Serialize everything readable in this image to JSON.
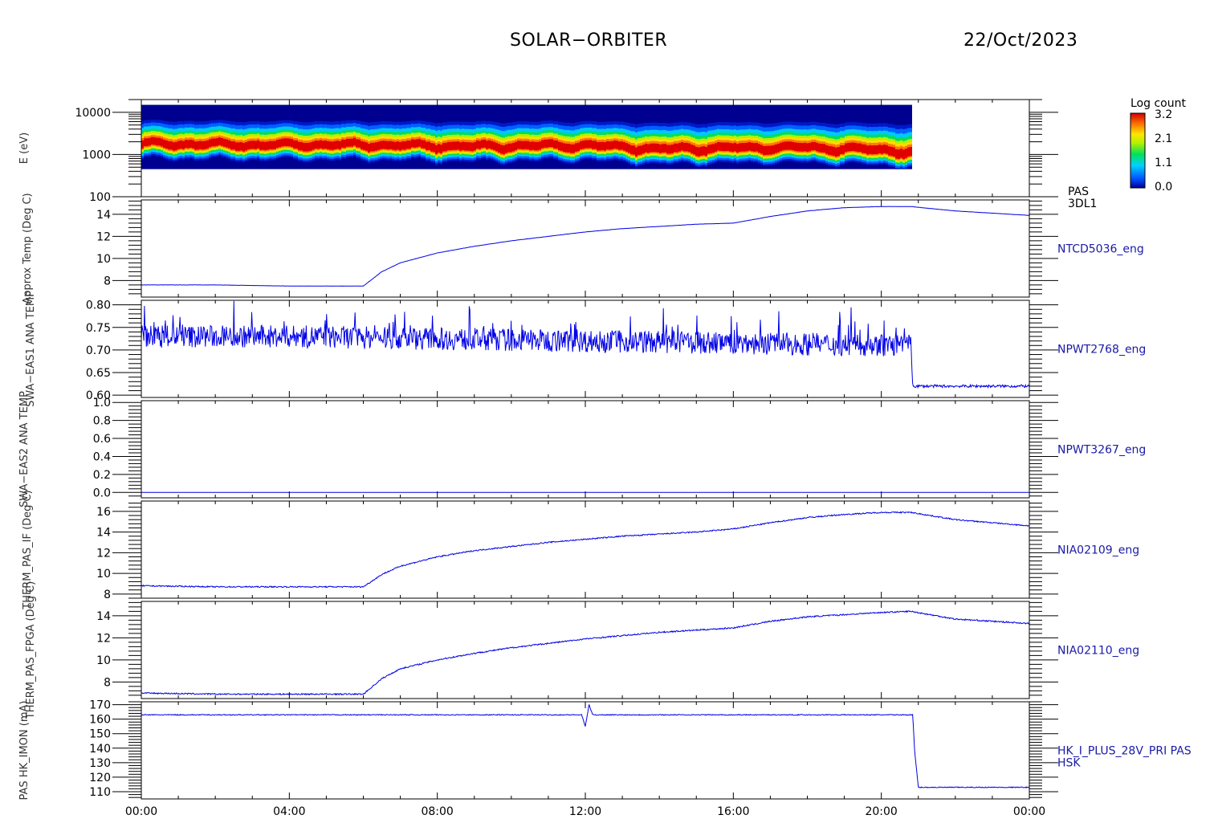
{
  "header": {
    "title": "SOLAR−ORBITER",
    "date": "22/Oct/2023"
  },
  "colorbar": {
    "title": "Log count",
    "ticks": [
      "3.2",
      "2.1",
      "1.1",
      "0.0"
    ]
  },
  "colors": {
    "trace": "#0000e6",
    "axis": "#000000",
    "label": "#1a1aa8"
  },
  "time_axis": {
    "labels": [
      "00:00",
      "04:00",
      "08:00",
      "12:00",
      "16:00",
      "20:00",
      "00:00"
    ],
    "start_hour": 0,
    "end_hour": 24
  },
  "panels": [
    {
      "type": "spectrogram",
      "ylabel": "E (eV)",
      "right_label": [
        "PAS",
        "3DL1"
      ],
      "log": true,
      "ylim": [
        100,
        20000
      ],
      "yticks": [
        100,
        1000,
        10000
      ],
      "yticklabels": [
        "100",
        "1000",
        "10000"
      ]
    },
    {
      "type": "line",
      "ylabel": "Approx Temp (Deg C)",
      "right_label": [
        "NTCD5036_eng"
      ],
      "ylim": [
        6.5,
        15.3
      ],
      "yticks": [
        8,
        10,
        12,
        14
      ],
      "yticklabels": [
        "8",
        "10",
        "12",
        "14"
      ]
    },
    {
      "type": "line",
      "ylabel": "SWA−EAS1 ANA TEMP",
      "right_label": [
        "NPWT2768_eng"
      ],
      "ylim": [
        0.595,
        0.81
      ],
      "yticks": [
        0.6,
        0.65,
        0.7,
        0.75,
        0.8
      ],
      "yticklabels": [
        "0.60",
        "0.65",
        "0.70",
        "0.75",
        "0.80"
      ]
    },
    {
      "type": "line",
      "ylabel": "SWA−EAS2 ANA TEMP",
      "right_label": [
        "NPWT3267_eng"
      ],
      "ylim": [
        -0.06,
        1.02
      ],
      "yticks": [
        0,
        0.2,
        0.4,
        0.6,
        0.8,
        1.0
      ],
      "yticklabels": [
        "0.0",
        "0.2",
        "0.4",
        "0.6",
        "0.8",
        "1.0"
      ]
    },
    {
      "type": "line",
      "ylabel": "THERM_PAS_IF (Deg C)",
      "right_label": [
        "NIA02109_eng"
      ],
      "ylim": [
        7.6,
        17.0
      ],
      "yticks": [
        8,
        10,
        12,
        14,
        16
      ],
      "yticklabels": [
        "8",
        "10",
        "12",
        "14",
        "16"
      ]
    },
    {
      "type": "line",
      "ylabel": "THERM_PAS_FPGA (Deg C)",
      "right_label": [
        "NIA02110_eng"
      ],
      "ylim": [
        6.5,
        15.3
      ],
      "yticks": [
        8,
        10,
        12,
        14
      ],
      "yticklabels": [
        "8",
        "10",
        "12",
        "14"
      ]
    },
    {
      "type": "line",
      "ylabel": "PAS HK_IMON (mA)",
      "right_label": [
        "HK_I_PLUS_28V_PRI PAS",
        "HSK"
      ],
      "ylim": [
        105,
        172
      ],
      "yticks": [
        110,
        120,
        130,
        140,
        150,
        160,
        170
      ],
      "yticklabels": [
        "110",
        "120",
        "130",
        "140",
        "150",
        "160",
        "170"
      ]
    }
  ],
  "chart_data": {
    "type": "line",
    "title": "SOLAR−ORBITER",
    "date": "22/Oct/2023",
    "x_unit": "hour",
    "xlim": [
      0,
      24
    ],
    "series": [
      {
        "name": "PAS 3DL1",
        "kind": "spectrogram",
        "peak_energy_eV": {
          "x": [
            0,
            3,
            6,
            9,
            12,
            14,
            16,
            18,
            20.8
          ],
          "y": [
            1700,
            1600,
            1600,
            1450,
            1550,
            1250,
            1350,
            1350,
            1100
          ]
        },
        "energy_range_eV": [
          450,
          15000
        ],
        "data_end_hour": 20.8
      },
      {
        "name": "NTCD5036_eng",
        "x": [
          0,
          2,
          4,
          6,
          6.5,
          7,
          8,
          9,
          10,
          11,
          12,
          13,
          14,
          15,
          16,
          17,
          18,
          19,
          20,
          20.8,
          22,
          24
        ],
        "y": [
          7.6,
          7.6,
          7.5,
          7.5,
          8.8,
          9.6,
          10.5,
          11.1,
          11.6,
          12.0,
          12.4,
          12.7,
          12.9,
          13.1,
          13.2,
          13.8,
          14.3,
          14.6,
          14.7,
          14.7,
          14.3,
          13.9
        ]
      },
      {
        "name": "NPWT2768_eng",
        "x": [
          0,
          4,
          8,
          12,
          16,
          20.8,
          20.85,
          24
        ],
        "y": [
          0.73,
          0.73,
          0.725,
          0.72,
          0.715,
          0.71,
          0.62,
          0.62
        ]
      },
      {
        "name": "NPWT3267_eng",
        "x": [
          0,
          24
        ],
        "y": [
          0,
          0
        ]
      },
      {
        "name": "NIA02109_eng",
        "x": [
          0,
          2,
          4,
          6,
          6.5,
          7,
          8,
          9,
          10,
          11,
          12,
          13,
          14,
          15,
          16,
          17,
          18,
          19,
          20,
          20.8,
          22,
          24
        ],
        "y": [
          8.8,
          8.7,
          8.7,
          8.7,
          9.9,
          10.7,
          11.6,
          12.2,
          12.6,
          13.0,
          13.3,
          13.6,
          13.8,
          14.0,
          14.3,
          14.9,
          15.4,
          15.7,
          15.9,
          15.9,
          15.2,
          14.6
        ]
      },
      {
        "name": "NIA02110_eng",
        "x": [
          0,
          2,
          4,
          6,
          6.5,
          7,
          8,
          9,
          10,
          11,
          12,
          13,
          14,
          15,
          16,
          17,
          18,
          19,
          20,
          20.8,
          22,
          24
        ],
        "y": [
          7.0,
          6.9,
          6.9,
          6.9,
          8.3,
          9.2,
          10.0,
          10.6,
          11.1,
          11.5,
          11.9,
          12.2,
          12.5,
          12.7,
          12.9,
          13.5,
          13.9,
          14.1,
          14.3,
          14.4,
          13.7,
          13.3
        ]
      },
      {
        "name": "HK_I_PLUS_28V_PRI PAS",
        "x": [
          0,
          11.9,
          12.0,
          12.1,
          12.2,
          20.85,
          20.9,
          21.0,
          24
        ],
        "y": [
          163,
          163,
          155,
          170,
          163,
          163,
          138,
          113,
          113
        ]
      }
    ]
  }
}
